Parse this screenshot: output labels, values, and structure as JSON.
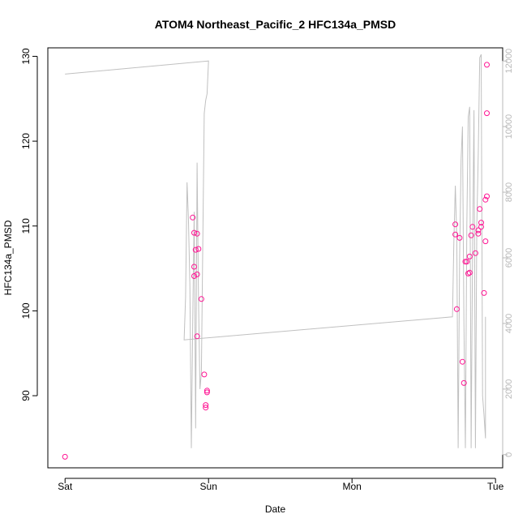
{
  "chart_data": {
    "type": "scatter",
    "title": "ATOM4 Northeast_Pacific_2 HFC134a_PMSD",
    "xlabel": "Date",
    "ylabel": "HFC134a_PMSD",
    "x_ticks": [
      "Sat",
      "Sun",
      "Mon",
      "Tue"
    ],
    "x_tick_days": [
      0,
      1,
      2,
      3
    ],
    "xlim_days": [
      -0.12,
      3.05
    ],
    "ylim": [
      81.5,
      131
    ],
    "y_ticks": [
      90,
      100,
      110,
      120,
      130
    ],
    "y2lim": [
      -400,
      12400
    ],
    "y2_ticks": [
      0,
      2000,
      4000,
      6000,
      8000,
      10000,
      12000
    ],
    "grid": false,
    "colors": {
      "points": "#ff1493",
      "line": "#c0c0c0",
      "right_axis": "#b8b8b8"
    },
    "series": [
      {
        "marker": "circle",
        "points": [
          [
            0.0,
            82.8
          ],
          [
            0.89,
            111.0
          ],
          [
            0.9,
            109.2
          ],
          [
            0.9,
            105.2
          ],
          [
            0.9,
            104.1
          ],
          [
            0.91,
            107.2
          ],
          [
            0.92,
            109.1
          ],
          [
            0.92,
            104.3
          ],
          [
            0.92,
            97.0
          ],
          [
            0.93,
            107.3
          ],
          [
            0.95,
            101.4
          ],
          [
            0.97,
            92.5
          ],
          [
            0.98,
            88.9
          ],
          [
            0.98,
            88.6
          ],
          [
            0.99,
            90.4
          ],
          [
            0.99,
            90.6
          ],
          [
            2.72,
            110.2
          ],
          [
            2.72,
            109.0
          ],
          [
            2.73,
            100.2
          ],
          [
            2.75,
            108.6
          ],
          [
            2.77,
            94.0
          ],
          [
            2.78,
            91.5
          ],
          [
            2.79,
            105.8
          ],
          [
            2.8,
            105.8
          ],
          [
            2.81,
            104.4
          ],
          [
            2.82,
            104.5
          ],
          [
            2.82,
            106.4
          ],
          [
            2.83,
            108.9
          ],
          [
            2.84,
            109.9
          ],
          [
            2.86,
            106.8
          ],
          [
            2.88,
            109.1
          ],
          [
            2.88,
            109.5
          ],
          [
            2.89,
            112.0
          ],
          [
            2.9,
            110.4
          ],
          [
            2.9,
            109.9
          ],
          [
            2.92,
            102.1
          ],
          [
            2.93,
            113.1
          ],
          [
            2.93,
            108.2
          ],
          [
            2.94,
            113.5
          ],
          [
            2.94,
            123.3
          ],
          [
            2.94,
            129.0
          ]
        ]
      },
      {
        "axis": "right",
        "line": true,
        "points": [
          [
            0.0,
            11600
          ],
          [
            1.0,
            12000
          ],
          [
            0.99,
            11000
          ],
          [
            0.98,
            10800
          ],
          [
            0.97,
            10400
          ],
          [
            0.96,
            6400
          ],
          [
            0.95,
            2500
          ],
          [
            0.94,
            2000
          ],
          [
            0.93,
            4800
          ],
          [
            0.92,
            8900
          ],
          [
            0.91,
            800
          ],
          [
            0.9,
            7400
          ],
          [
            0.89,
            4000
          ],
          [
            0.88,
            200
          ],
          [
            0.87,
            5200
          ],
          [
            0.86,
            7200
          ],
          [
            0.85,
            8300
          ],
          [
            0.84,
            4800
          ],
          [
            0.83,
            3500
          ],
          [
            2.7,
            4200
          ],
          [
            2.71,
            6500
          ],
          [
            2.72,
            8200
          ],
          [
            2.73,
            6600
          ],
          [
            2.74,
            200
          ],
          [
            2.75,
            6000
          ],
          [
            2.76,
            9000
          ],
          [
            2.77,
            10000
          ],
          [
            2.78,
            4000
          ],
          [
            2.79,
            200
          ],
          [
            2.8,
            7000
          ],
          [
            2.81,
            10300
          ],
          [
            2.82,
            10600
          ],
          [
            2.83,
            200
          ],
          [
            2.84,
            6000
          ],
          [
            2.85,
            10500
          ],
          [
            2.86,
            200
          ],
          [
            2.87,
            7000
          ],
          [
            2.88,
            9200
          ],
          [
            2.89,
            12100
          ],
          [
            2.9,
            12200
          ],
          [
            2.91,
            1800
          ],
          [
            2.92,
            1200
          ],
          [
            2.93,
            500
          ],
          [
            2.93,
            4200
          ]
        ]
      }
    ]
  }
}
